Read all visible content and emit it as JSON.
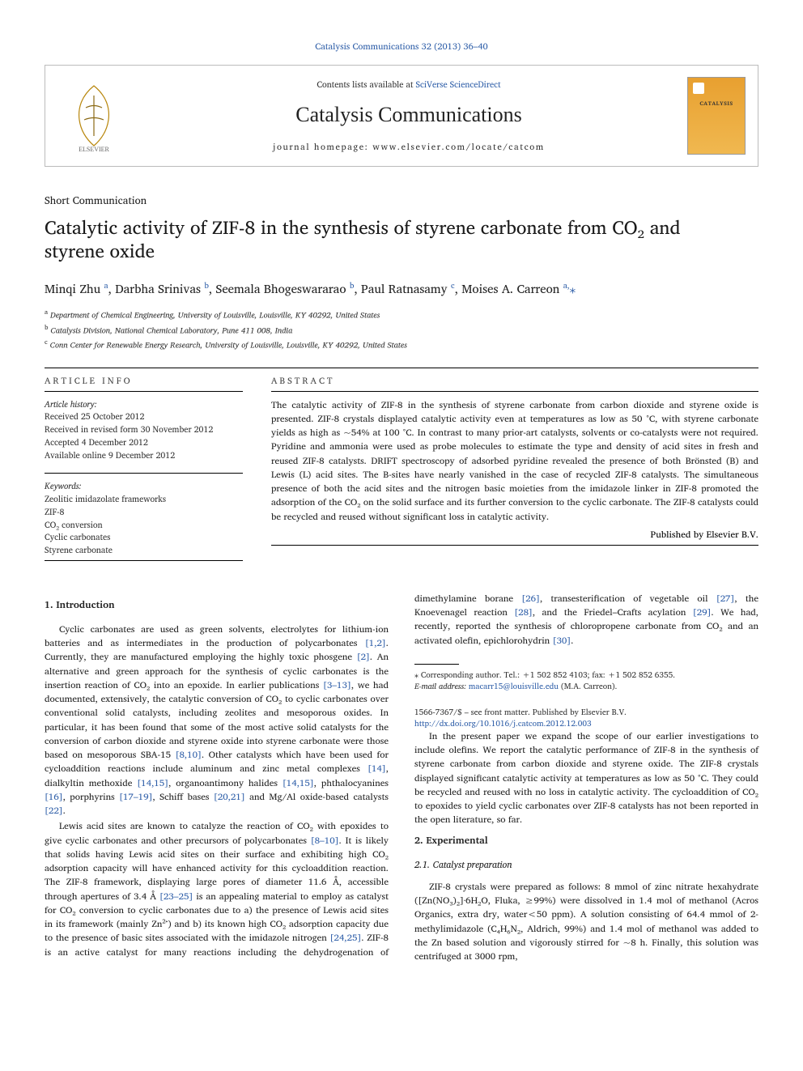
{
  "top_link": "Catalysis Communications 32 (2013) 36–40",
  "header": {
    "contents_prefix": "Contents lists available at ",
    "contents_link": "SciVerse ScienceDirect",
    "journal": "Catalysis Communications",
    "homepage": "journal homepage: www.elsevier.com/locate/catcom"
  },
  "article_type": "Short Communication",
  "title_line1": "Catalytic activity of ZIF-8 in the synthesis of styrene carbonate from CO₂ and",
  "title_line2": "styrene oxide",
  "authors_html": "Minqi Zhu <sup>a</sup>, Darbha Srinivas <sup>b</sup>, Seemala Bhogeswararao <sup>b</sup>, Paul Ratnasamy <sup>c</sup>, Moises A. Carreon <sup>a,</sup><span class='star'>⁎</span>",
  "affiliations": {
    "a": "Department of Chemical Engineering, University of Louisville, Louisville, KY 40292, United States",
    "b": "Catalysis Division, National Chemical Laboratory, Pune 411 008, India",
    "c": "Conn Center for Renewable Energy Research, University of Louisville, Louisville, KY 40292, United States"
  },
  "info_head": "ARTICLE INFO",
  "abstract_head": "ABSTRACT",
  "history": {
    "label": "Article history:",
    "received": "Received 25 October 2012",
    "revised": "Received in revised form 30 November 2012",
    "accepted": "Accepted 4 December 2012",
    "online": "Available online 9 December 2012"
  },
  "keywords": {
    "label": "Keywords:",
    "k1": "Zeolitic imidazolate frameworks",
    "k2": "ZIF-8",
    "k3": "CO₂ conversion",
    "k4": "Cyclic carbonates",
    "k5": "Styrene carbonate"
  },
  "abstract": "The catalytic activity of ZIF-8 in the synthesis of styrene carbonate from carbon dioxide and styrene oxide is presented. ZIF-8 crystals displayed catalytic activity even at temperatures as low as 50 °C, with styrene carbonate yields as high as ~54% at 100 °C. In contrast to many prior-art catalysts, solvents or co-catalysts were not required. Pyridine and ammonia were used as probe molecules to estimate the type and density of acid sites in fresh and reused ZIF-8 catalysts. DRIFT spectroscopy of adsorbed pyridine revealed the presence of both Brönsted (B) and Lewis (L) acid sites. The B-sites have nearly vanished in the case of recycled ZIF-8 catalysts. The simultaneous presence of both the acid sites and the nitrogen basic moieties from the imidazole linker in ZIF-8 promoted the adsorption of the CO₂ on the solid surface and its further conversion to the cyclic carbonate. The ZIF-8 catalysts could be recycled and reused without significant loss in catalytic activity.",
  "publisher_line": "Published by Elsevier B.V.",
  "sections": {
    "s1_title": "1. Introduction",
    "s1_p1": "Cyclic carbonates are used as green solvents, electrolytes for lithium-ion batteries and as intermediates in the production of polycarbonates [1,2]. Currently, they are manufactured employing the highly toxic phosgene [2]. An alternative and green approach for the synthesis of cyclic carbonates is the insertion reaction of CO₂ into an epoxide. In earlier publications [3–13], we had documented, extensively, the catalytic conversion of CO₂ to cyclic carbonates over conventional solid catalysts, including zeolites and mesoporous oxides. In particular, it has been found that some of the most active solid catalysts for the conversion of carbon dioxide and styrene oxide into styrene carbonate were those based on mesoporous SBA-15 [8,10]. Other catalysts which have been used for cycloaddition reactions include aluminum and zinc metal complexes [14], dialkyltin methoxide [14,15], organoantimony halides [14,15], phthalocyanines [16], porphyrins [17–19], Schiff bases [20,21] and Mg/Al oxide-based catalysts [22].",
    "s1_p2": "Lewis acid sites are known to catalyze the reaction of CO₂ with epoxides to give cyclic carbonates and other precursors of polycarbonates [8–10]. It is likely that solids having Lewis acid sites on their surface and exhibiting high CO₂ adsorption capacity will have enhanced activity for this cycloaddition reaction. The ZIF-8 framework, displaying large pores of diameter 11.6 Å, accessible through apertures of 3.4 Å [23–25] is an appealing material to employ as catalyst for CO₂ conversion to cyclic carbonates due to a) the presence of Lewis acid sites in its framework (mainly Zn²⁺) and b) its known high CO₂ adsorption capacity due to the presence of basic sites associated with the imidazole nitrogen [24,25]. ZIF-8 is an active catalyst for many reactions including the dehydrogenation of dimethylamine borane [26], transesterification of vegetable oil [27], the Knoevenagel reaction [28], and the Friedel–Crafts acylation [29]. We had, recently, reported the synthesis of chloropropene carbonate from CO₂ and an activated olefin, epichlorohydrin [30].",
    "s1_p3": "In the present paper we expand the scope of our earlier investigations to include olefins. We report the catalytic performance of ZIF-8 in the synthesis of styrene carbonate from carbon dioxide and styrene oxide. The ZIF-8 crystals displayed significant catalytic activity at temperatures as low as 50 °C. They could be recycled and reused with no loss in catalytic activity. The cycloaddition of CO₂ to epoxides to yield cyclic carbonates over ZIF-8 catalysts has not been reported in the open literature, so far.",
    "s2_title": "2. Experimental",
    "s21_title": "2.1. Catalyst preparation",
    "s21_p1": "ZIF-8 crystals were prepared as follows: 8 mmol of zinc nitrate hexahydrate ([Zn(NO₃)₂]·6H₂O, Fluka, ≥99%) were dissolved in 1.4 mol of methanol (Acros Organics, extra dry, water<50 ppm). A solution consisting of 64.4 mmol of 2-methylimidazole (C₄H₆N₂, Aldrich, 99%) and 1.4 mol of methanol was added to the Zn based solution and vigorously stirred for ~8 h. Finally, this solution was centrifuged at 3000 rpm,"
  },
  "footnote": {
    "corr": "⁎ Corresponding author. Tel.: +1 502 852 4103; fax: +1 502 852 6355.",
    "email_label": "E-mail address: ",
    "email": "macarr15@louisville.edu",
    "email_suffix": " (M.A. Carreon)."
  },
  "bottom": {
    "issn": "1566-7367/$ – see front matter. Published by Elsevier B.V.",
    "doi": "http://dx.doi.org/10.1016/j.catcom.2012.12.003"
  },
  "refs": [
    "[1,2]",
    "[2]",
    "[3–13]",
    "[8,10]",
    "[14]",
    "[14,15]",
    "[14,15]",
    "[16]",
    "[17–19]",
    "[20,21]",
    "[22]",
    "[8–10]",
    "[23–25]",
    "[24,25]",
    "[26]",
    "[27]",
    "[28]",
    "[29]",
    "[30]"
  ],
  "colors": {
    "link": "#2e5ea8",
    "text": "#222",
    "rule": "#000"
  }
}
